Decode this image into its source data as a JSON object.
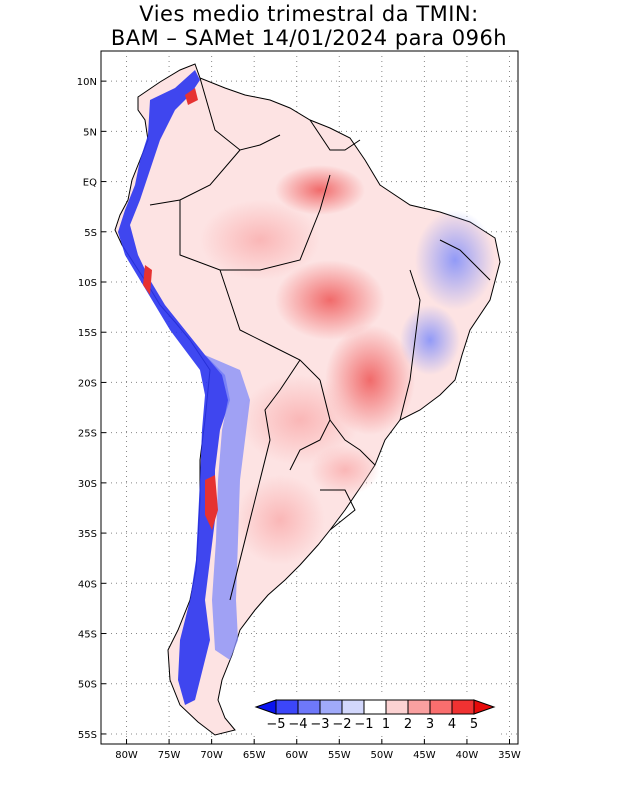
{
  "title": {
    "line1": "Vies medio trimestral da TMIN:",
    "line2": "BAM – SAMet 14/01/2024  para 096h"
  },
  "map": {
    "region": "South America",
    "projection": "lat-lon",
    "lon_range": [
      -83,
      -34
    ],
    "lat_range": [
      -56,
      13
    ],
    "grid": "dotted",
    "lon_ticks": [
      {
        "value": -80,
        "label": "80W"
      },
      {
        "value": -75,
        "label": "75W"
      },
      {
        "value": -70,
        "label": "70W"
      },
      {
        "value": -65,
        "label": "65W"
      },
      {
        "value": -60,
        "label": "60W"
      },
      {
        "value": -55,
        "label": "55W"
      },
      {
        "value": -50,
        "label": "50W"
      },
      {
        "value": -45,
        "label": "45W"
      },
      {
        "value": -40,
        "label": "40W"
      },
      {
        "value": -35,
        "label": "35W"
      }
    ],
    "lat_ticks": [
      {
        "value": 10,
        "label": "10N"
      },
      {
        "value": 5,
        "label": "5N"
      },
      {
        "value": 0,
        "label": "EQ"
      },
      {
        "value": -5,
        "label": "5S"
      },
      {
        "value": -10,
        "label": "10S"
      },
      {
        "value": -15,
        "label": "15S"
      },
      {
        "value": -20,
        "label": "20S"
      },
      {
        "value": -25,
        "label": "25S"
      },
      {
        "value": -30,
        "label": "30S"
      },
      {
        "value": -35,
        "label": "35S"
      },
      {
        "value": -40,
        "label": "40S"
      },
      {
        "value": -45,
        "label": "45S"
      },
      {
        "value": -50,
        "label": "50S"
      },
      {
        "value": -55,
        "label": "55S"
      }
    ]
  },
  "colorbar": {
    "placement": "bottom-right",
    "labels": [
      "−5",
      "−4",
      "−3",
      "−2",
      "−1",
      "1",
      "2",
      "3",
      "4",
      "5"
    ],
    "colors": [
      "#0a14f0",
      "#3c46fa",
      "#6e78fa",
      "#a0aafa",
      "#d2d7fc",
      "#ffffff",
      "#fcd2d2",
      "#faa0a0",
      "#fa6e6e",
      "#f03232",
      "#e60a0a"
    ]
  }
}
